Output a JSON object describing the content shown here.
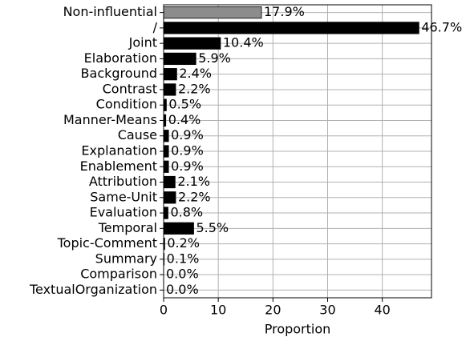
{
  "chart_data": {
    "type": "barh",
    "categories": [
      "Non-influential",
      "/",
      "Joint",
      "Elaboration",
      "Background",
      "Contrast",
      "Condition",
      "Manner-Means",
      "Cause",
      "Explanation",
      "Enablement",
      "Attribution",
      "Same-Unit",
      "Evaluation",
      "Temporal",
      "Topic-Comment",
      "Summary",
      "Comparison",
      "TextualOrganization"
    ],
    "values": [
      17.9,
      46.7,
      10.4,
      5.9,
      2.4,
      2.2,
      0.5,
      0.4,
      0.9,
      0.9,
      0.9,
      2.1,
      2.2,
      0.8,
      5.5,
      0.2,
      0.1,
      0.0,
      0.0
    ],
    "value_labels": [
      "17.9%",
      "46.7%",
      "10.4%",
      "5.9%",
      "2.4%",
      "2.2%",
      "0.5%",
      "0.4%",
      "0.9%",
      "0.9%",
      "0.9%",
      "2.1%",
      "2.2%",
      "0.8%",
      "5.5%",
      "0.2%",
      "0.1%",
      "0.0%",
      "0.0%"
    ],
    "colors": [
      "#8c8c8c",
      "#000000",
      "#000000",
      "#000000",
      "#000000",
      "#000000",
      "#000000",
      "#000000",
      "#000000",
      "#000000",
      "#000000",
      "#000000",
      "#000000",
      "#000000",
      "#000000",
      "#000000",
      "#000000",
      "#000000",
      "#000000"
    ],
    "xlabel": "Proportion",
    "xlim": [
      0,
      49
    ],
    "xticks": [
      0,
      10,
      20,
      30,
      40
    ],
    "grid": true
  }
}
